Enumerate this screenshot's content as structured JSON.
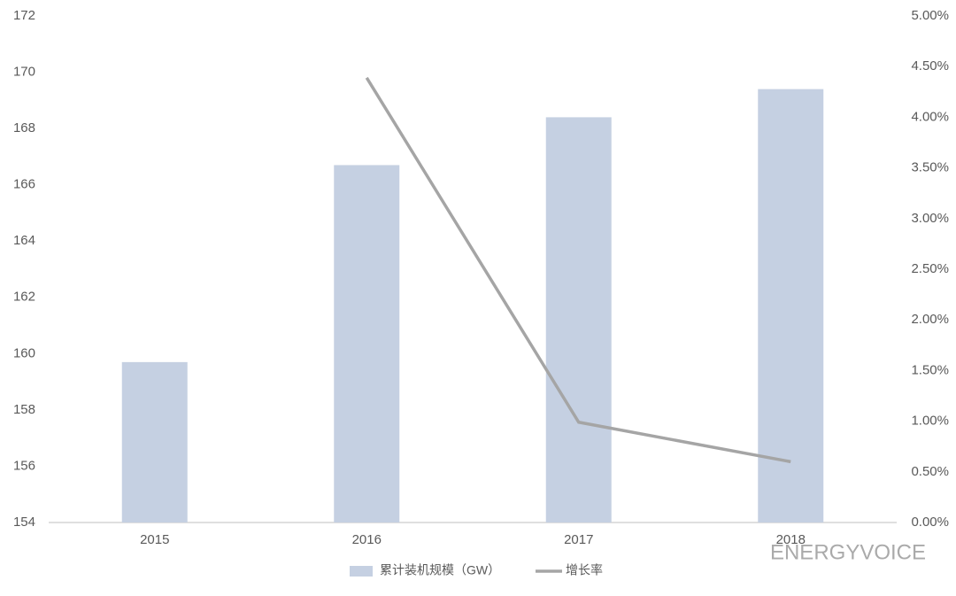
{
  "chart_data": {
    "type": "bar-line",
    "categories": [
      "2015",
      "2016",
      "2017",
      "2018"
    ],
    "series": [
      {
        "name": "累计装机规模（GW）",
        "color": "#c5d0e2",
        "type": "bar",
        "values": [
          159.7,
          166.7,
          168.4,
          169.4
        ]
      },
      {
        "name": "增长率",
        "color": "#a5a5a5",
        "type": "line",
        "axis": "y2",
        "values": [
          null,
          4.39,
          0.99,
          0.6
        ]
      }
    ],
    "ylim": [
      154,
      172
    ],
    "yticks": [
      154,
      156,
      158,
      160,
      162,
      164,
      166,
      168,
      170,
      172
    ],
    "y2lim": [
      0,
      5
    ],
    "y2ticks": [
      {
        "value": 0,
        "label": "0.00%"
      },
      {
        "value": 0.5,
        "label": "0.50%"
      },
      {
        "value": 1,
        "label": "1.00%"
      },
      {
        "value": 1.5,
        "label": "1.50%"
      },
      {
        "value": 2,
        "label": "2.00%"
      },
      {
        "value": 2.5,
        "label": "2.50%"
      },
      {
        "value": 3,
        "label": "3.00%"
      },
      {
        "value": 3.5,
        "label": "3.50%"
      },
      {
        "value": 4,
        "label": "4.00%"
      },
      {
        "value": 4.5,
        "label": "4.50%"
      },
      {
        "value": 5,
        "label": "5.00%"
      }
    ],
    "watermark": "ENERGYVOICE"
  }
}
